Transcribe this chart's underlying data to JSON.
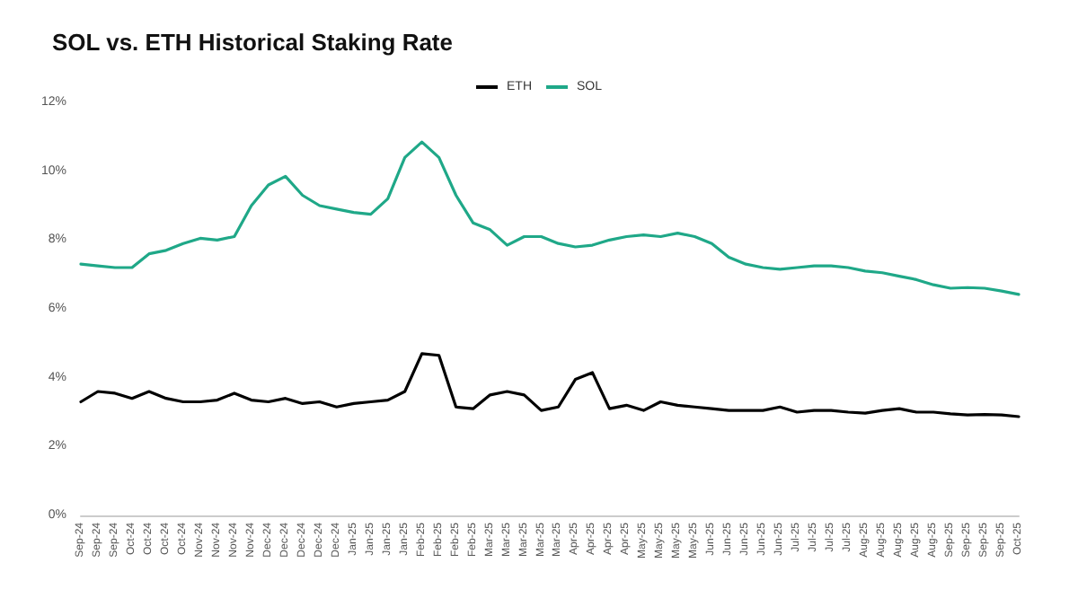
{
  "chart_data": {
    "type": "line",
    "title": "SOL vs. ETH Historical Staking Rate",
    "categories": [
      "Sep-24",
      "Sep-24",
      "Sep-24",
      "Oct-24",
      "Oct-24",
      "Oct-24",
      "Oct-24",
      "Nov-24",
      "Nov-24",
      "Nov-24",
      "Nov-24",
      "Dec-24",
      "Dec-24",
      "Dec-24",
      "Dec-24",
      "Dec-24",
      "Jan-25",
      "Jan-25",
      "Jan-25",
      "Jan-25",
      "Feb-25",
      "Feb-25",
      "Feb-25",
      "Feb-25",
      "Mar-25",
      "Mar-25",
      "Mar-25",
      "Mar-25",
      "Mar-25",
      "Apr-25",
      "Apr-25",
      "Apr-25",
      "Apr-25",
      "May-25",
      "May-25",
      "May-25",
      "May-25",
      "Jun-25",
      "Jun-25",
      "Jun-25",
      "Jun-25",
      "Jun-25",
      "Jul-25",
      "Jul-25",
      "Jul-25",
      "Jul-25",
      "Aug-25",
      "Aug-25",
      "Aug-25",
      "Aug-25",
      "Aug-25",
      "Sep-25",
      "Sep-25",
      "Sep-25",
      "Sep-25",
      "Oct-25"
    ],
    "series": [
      {
        "name": "ETH",
        "color": "#000000",
        "values": [
          3.3,
          3.6,
          3.55,
          3.4,
          3.6,
          3.4,
          3.3,
          3.3,
          3.35,
          3.55,
          3.35,
          3.3,
          3.4,
          3.25,
          3.3,
          3.15,
          3.25,
          3.3,
          3.35,
          3.6,
          4.7,
          4.65,
          3.15,
          3.1,
          3.5,
          3.6,
          3.5,
          3.05,
          3.15,
          3.95,
          4.15,
          3.1,
          3.2,
          3.05,
          3.3,
          3.2,
          3.15,
          3.1,
          3.05,
          3.05,
          3.05,
          3.15,
          3.0,
          3.05,
          3.05,
          3.0,
          2.97,
          3.05,
          3.1,
          3.0,
          3.0,
          2.95,
          2.92,
          2.93,
          2.92,
          2.87
        ]
      },
      {
        "name": "SOL",
        "color": "#1fa888",
        "values": [
          7.3,
          7.25,
          7.2,
          7.2,
          7.6,
          7.7,
          7.9,
          8.05,
          8.0,
          8.1,
          9.0,
          9.6,
          9.85,
          9.3,
          9.0,
          8.9,
          8.8,
          8.75,
          9.2,
          10.4,
          10.85,
          10.4,
          9.3,
          8.5,
          8.3,
          7.85,
          8.1,
          8.1,
          7.9,
          7.8,
          7.85,
          8.0,
          8.1,
          8.15,
          8.1,
          8.2,
          8.1,
          7.9,
          7.5,
          7.3,
          7.2,
          7.15,
          7.2,
          7.25,
          7.25,
          7.2,
          7.1,
          7.05,
          6.95,
          6.85,
          6.7,
          6.6,
          6.62,
          6.6,
          6.52,
          6.42
        ]
      }
    ],
    "ylim": [
      0,
      12
    ],
    "yticks": [
      {
        "value": 0,
        "label": "0%"
      },
      {
        "value": 2,
        "label": "2%"
      },
      {
        "value": 4,
        "label": "4%"
      },
      {
        "value": 6,
        "label": "6%"
      },
      {
        "value": 8,
        "label": "8%"
      },
      {
        "value": 10,
        "label": "10%"
      },
      {
        "value": 12,
        "label": "12%"
      }
    ],
    "grid": false,
    "legend": "top",
    "marker": "none",
    "line_style": "solid"
  }
}
